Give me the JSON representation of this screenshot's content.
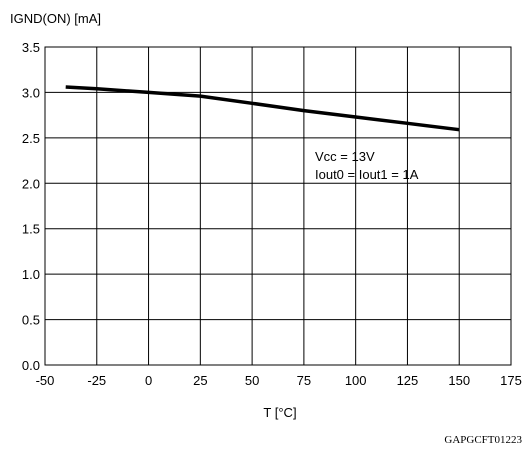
{
  "chart_data": {
    "type": "line",
    "ylabel": "IGND(ON) [mA]",
    "xlabel": "T [°C]",
    "xlim": [
      -50,
      175
    ],
    "ylim": [
      0,
      3.5
    ],
    "x_ticks": [
      -50,
      -25,
      0,
      25,
      50,
      75,
      100,
      125,
      150,
      175
    ],
    "y_ticks": [
      0.0,
      0.5,
      1.0,
      1.5,
      2.0,
      2.5,
      3.0,
      3.5
    ],
    "grid": true,
    "annotation_lines": [
      "Vcc = 13V",
      "Iout0 = Iout1 = 1A"
    ],
    "series": [
      {
        "x": [
          -40,
          -25,
          0,
          25,
          50,
          75,
          100,
          125,
          150
        ],
        "y": [
          3.06,
          3.04,
          3.0,
          2.96,
          2.88,
          2.8,
          2.73,
          2.66,
          2.59
        ],
        "color": "#000000"
      }
    ]
  },
  "figure_ref": "GAPGCFT01223"
}
